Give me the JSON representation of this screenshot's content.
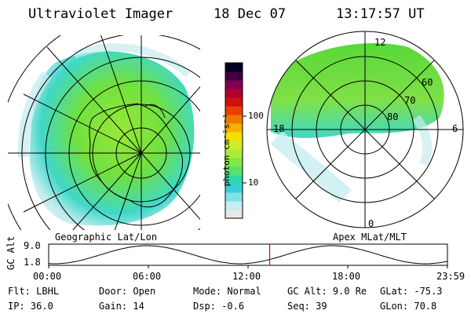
{
  "header": {
    "instrument": "Ultraviolet Imager",
    "date": "18 Dec 07",
    "time": "13:17:57 UT"
  },
  "panels": {
    "left_label": "Geographic Lat/Lon",
    "right_label": "Apex MLat/MLT",
    "right_mlt_labels": [
      "12",
      "18",
      "6",
      "0"
    ],
    "right_mlat_labels": [
      "60",
      "70",
      "80"
    ]
  },
  "colorbar": {
    "unit_label": "photon cm⁻²s⁻¹",
    "ticks": [
      "100",
      "10"
    ],
    "colors": [
      "#e8e8e8",
      "#c8ecf0",
      "#7fe0e8",
      "#38d0d8",
      "#30d8a8",
      "#58e070",
      "#80e848",
      "#a8ec38",
      "#d0ec30",
      "#f0e000",
      "#f8b000",
      "#f07800",
      "#e84000",
      "#d01010",
      "#b00030",
      "#800050",
      "#400040",
      "#000020"
    ]
  },
  "timeline": {
    "y_axis_label": "GC Alt",
    "y_ticks": [
      "9.0",
      "1.8"
    ],
    "x_ticks": [
      "00:00",
      "06:00",
      "12:00",
      "18:00",
      "23:59"
    ],
    "current_marker_hour": 13.3
  },
  "status": {
    "flt_label": "Flt:",
    "flt_value": "LBHL",
    "ip_label": "IP:",
    "ip_value": "36.0",
    "door_label": "Door:",
    "door_value": "Open",
    "gain_label": "Gain:",
    "gain_value": "14",
    "mode_label": "Mode:",
    "mode_value": "Normal",
    "dsp_label": "Dsp:",
    "dsp_value": "-0.6",
    "gcalt_label": "GC Alt:",
    "gcalt_value": "9.0 Re",
    "seq_label": "Seq:",
    "seq_value": "39",
    "glat_label": "GLat:",
    "glat_value": "-75.3",
    "glon_label": "GLon:",
    "glon_value": "70.8"
  },
  "colors": {
    "aurora_dark": "#58d830",
    "aurora_mid": "#80e040",
    "aurora_edge": "#40d8d0",
    "aurora_faint": "#c8ecf0",
    "marker": "#e00000"
  }
}
